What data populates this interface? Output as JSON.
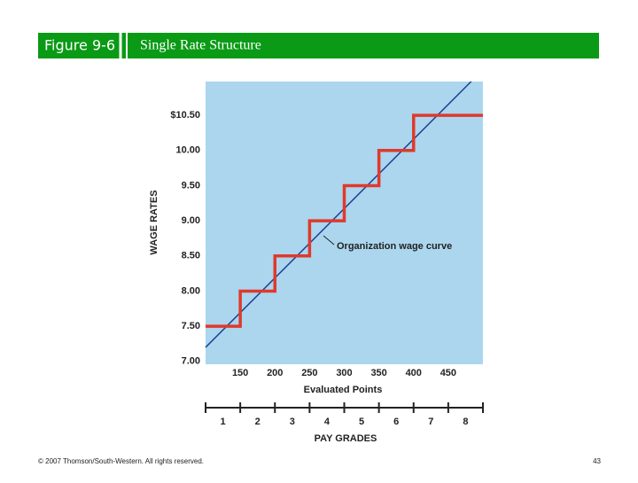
{
  "header": {
    "figure": "Figure 9-6",
    "title": "Single Rate Structure"
  },
  "chart_data": {
    "type": "line",
    "xlabel": "Evaluated Points",
    "ylabel": "WAGE RATES",
    "xlim": [
      100,
      500
    ],
    "ylim": [
      6.96,
      10.98
    ],
    "xticks": [
      150,
      200,
      250,
      300,
      350,
      400,
      450
    ],
    "yticks": [
      {
        "value": 7,
        "label": "7.00"
      },
      {
        "value": 7.5,
        "label": "7.50"
      },
      {
        "value": 8,
        "label": "8.00"
      },
      {
        "value": 8.5,
        "label": "8.50"
      },
      {
        "value": 9,
        "label": "9.00"
      },
      {
        "value": 9.5,
        "label": "9.50"
      },
      {
        "value": 10,
        "label": "10.00"
      },
      {
        "value": 10.5,
        "label": "$10.50"
      }
    ],
    "background": "#abd6ee",
    "series": [
      {
        "name": "Organization wage curve",
        "color": "#1f3f96",
        "x": [
          100,
          483
        ],
        "values": [
          7.2,
          10.98
        ]
      },
      {
        "color": "#e0392b",
        "x": [
          100,
          150,
          150,
          200,
          200,
          250,
          250,
          300,
          300,
          350,
          350,
          400,
          400,
          500
        ],
        "values": [
          7.5,
          7.5,
          8,
          8,
          8.5,
          8.5,
          9,
          9,
          9.5,
          9.5,
          10,
          10,
          10.5,
          10.5
        ]
      }
    ],
    "pay_grades": {
      "label": "PAY GRADES",
      "categories": [
        "1",
        "2",
        "3",
        "4",
        "5",
        "6",
        "7",
        "8"
      ]
    }
  },
  "footer": {
    "copyright": "© 2007 Thomson/South-Western. All rights reserved.",
    "page": 43
  }
}
